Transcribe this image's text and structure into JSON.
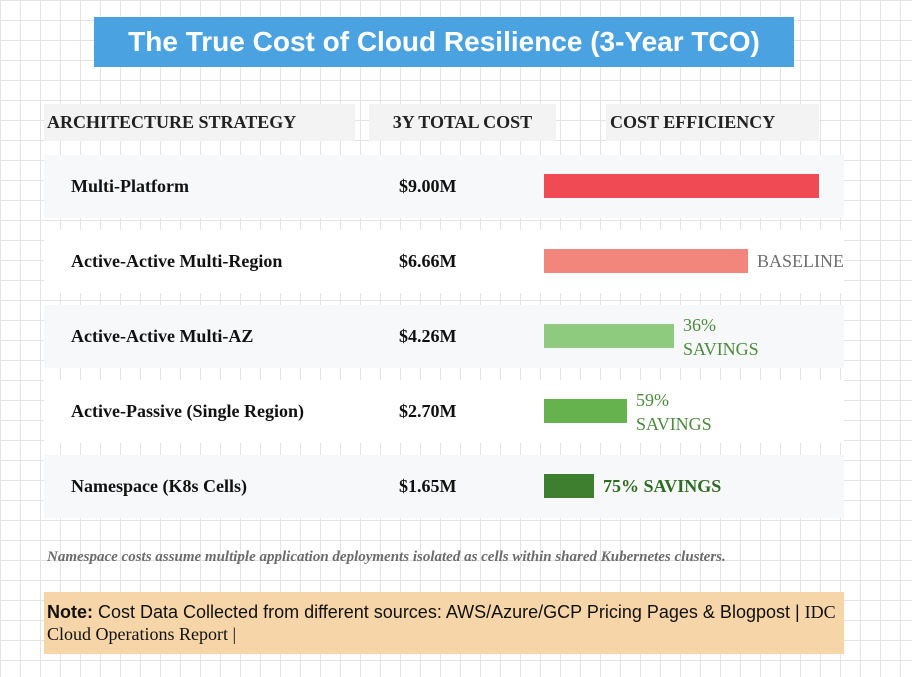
{
  "title": "The True Cost of Cloud Resilience (3-Year TCO)",
  "headers": {
    "strategy": "ARCHITECTURE STRATEGY",
    "cost": "3Y TOTAL COST",
    "efficiency": "COST EFFICIENCY"
  },
  "colors": {
    "banner": "#4aa3e0",
    "bar_multi_platform": "#f04a55",
    "bar_multi_region": "#f2857c",
    "bar_multi_az": "#8fcb7f",
    "bar_active_passive": "#66b24e",
    "bar_namespace": "#3d7f2f",
    "baseline_text": "#6e6e6e",
    "savings_text": "#4c8a3c",
    "savings_text_bold": "#2f6b23",
    "note_bg": "#f6d5a8"
  },
  "chart_data": {
    "type": "bar",
    "orientation": "horizontal",
    "categories": [
      "Multi-Platform",
      "Active-Active Multi-Region",
      "Active-Active Multi-AZ",
      "Active-Passive (Single Region)",
      "Namespace (K8s Cells)"
    ],
    "values": [
      9.0,
      6.66,
      4.26,
      2.7,
      1.65
    ],
    "value_labels": [
      "$9.00M",
      "$6.66M",
      "$4.26M",
      "$2.70M",
      "$1.65M"
    ],
    "annotations": [
      {
        "lines": []
      },
      {
        "lines": [
          "BASELINE"
        ]
      },
      {
        "lines": [
          "36%",
          "SAVINGS"
        ]
      },
      {
        "lines": [
          "59%",
          "SAVINGS"
        ]
      },
      {
        "lines": [
          "75% SAVINGS"
        ],
        "bold": true
      }
    ],
    "xlim": [
      0,
      9.0
    ]
  },
  "footnote": "Namespace costs assume multiple application deployments isolated as cells within shared Kubernetes clusters.",
  "note": {
    "label": "Note:",
    "text_a": " Cost Data Collected from different sources:  AWS/Azure/GCP Pricing Pages & Blogpost | ",
    "text_b": "IDC Cloud Operations Report |"
  }
}
